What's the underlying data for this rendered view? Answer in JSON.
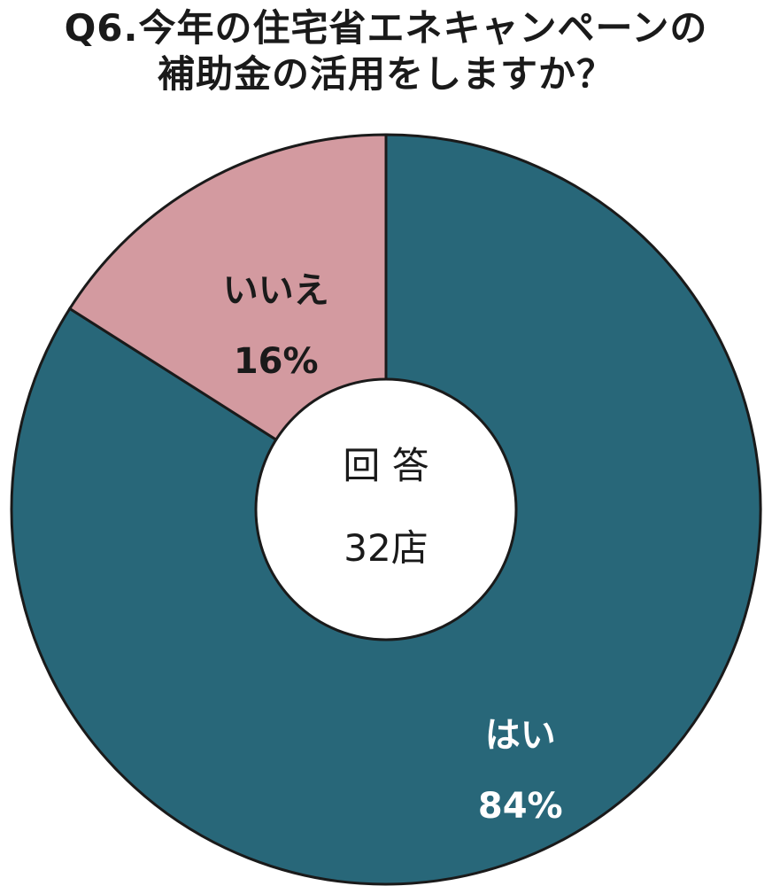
{
  "chart_data": {
    "type": "pie",
    "title_lines": [
      "Q6.今年の住宅省エネキャンペーンの",
      "補助金の活用をしますか？"
    ],
    "categories": [
      "はい",
      "いいえ"
    ],
    "values": [
      84,
      16
    ],
    "value_labels": [
      "84%",
      "16%"
    ],
    "colors": [
      "#286779",
      "#d39aa0"
    ],
    "label_colors": [
      "#ffffff",
      "#1a1a1a"
    ],
    "center_label_lines": [
      "回 答",
      "32店"
    ],
    "donut": true,
    "start_angle": "12 o'clock",
    "direction": "clockwise",
    "legend": "none"
  }
}
